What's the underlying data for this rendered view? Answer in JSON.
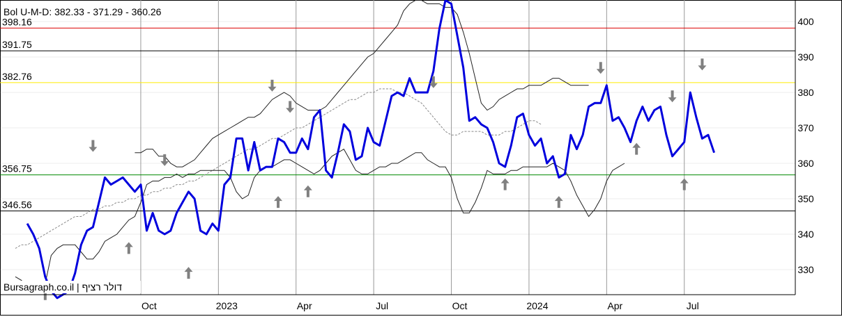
{
  "chart_data": {
    "type": "line",
    "title": "Bol U-M-D: 382.33 - 371.29 - 360.26",
    "watermark": "Bursagraph.co.il | דולר רציף",
    "ylim": [
      323,
      407
    ],
    "y_ticks": [
      330,
      340,
      350,
      360,
      370,
      380,
      390,
      400
    ],
    "x_ticks": [
      {
        "label": "Oct",
        "week": 21
      },
      {
        "label": "2023",
        "week": 34
      },
      {
        "label": "Apr",
        "week": 47
      },
      {
        "label": "Jul",
        "week": 60
      },
      {
        "label": "Oct",
        "week": 73
      },
      {
        "label": "2024",
        "week": 86
      },
      {
        "label": "Apr",
        "week": 99
      },
      {
        "label": "Jul",
        "week": 112
      }
    ],
    "x_range": [
      0,
      123
    ],
    "colors": {
      "price": "#0000dd",
      "band": "#222222",
      "middle": "#888888",
      "red_level": "#dd0000",
      "yellow_level": "#ffee00",
      "green_level": "#008800",
      "black_level": "#000000",
      "signal": "#808080",
      "grid": "#999999"
    },
    "levels": [
      {
        "label": "398.16",
        "value": 398.16,
        "color": "red"
      },
      {
        "label": "391.75",
        "value": 391.75,
        "color": "black"
      },
      {
        "label": "382.76",
        "value": 382.76,
        "color": "yellow"
      },
      {
        "label": "356.75",
        "value": 356.75,
        "color": "green"
      },
      {
        "label": "346.56",
        "value": 346.56,
        "color": "black"
      }
    ],
    "series": [
      {
        "role": "price",
        "x_start": 2,
        "values": [
          343,
          340,
          336,
          328,
          324,
          322,
          323,
          324,
          329,
          337,
          341,
          342,
          349,
          356,
          354,
          355,
          356,
          354,
          352,
          354,
          341,
          346,
          341,
          340,
          341,
          346,
          349,
          352,
          350,
          341,
          340,
          343,
          341,
          354,
          356,
          367,
          367,
          358,
          366,
          358,
          359,
          359,
          367,
          366,
          363,
          363,
          367,
          364,
          373,
          375,
          358,
          356,
          363,
          371,
          369,
          361,
          362,
          370,
          366,
          365,
          372,
          379,
          380,
          379,
          384,
          380,
          380,
          380,
          386,
          398,
          406,
          405,
          396,
          387,
          372,
          373,
          371,
          370,
          366,
          360,
          359,
          365,
          373,
          374,
          368,
          365,
          367,
          360,
          362,
          356,
          357,
          368,
          364,
          368,
          376,
          377,
          377,
          382,
          372,
          373,
          370,
          366,
          372,
          376,
          372,
          375,
          376,
          368,
          362,
          364,
          366,
          380,
          373,
          367,
          368,
          363
        ]
      },
      {
        "role": "upper-band",
        "x_start": 20,
        "values": [
          363,
          363,
          364,
          364,
          362,
          362,
          360,
          359,
          359,
          360,
          361,
          363,
          365,
          367,
          368,
          369,
          370,
          371,
          372,
          373,
          373,
          374,
          376,
          378,
          379,
          380,
          379,
          377,
          376,
          375,
          375,
          375,
          376,
          378,
          380,
          382,
          384,
          386,
          388,
          390,
          391,
          393,
          395,
          397,
          399,
          403,
          405,
          406,
          406,
          405,
          405,
          405,
          404,
          404,
          402,
          397,
          391,
          384,
          377,
          375,
          376,
          378,
          379,
          380,
          381,
          381,
          382,
          382,
          382,
          383,
          384,
          384,
          383,
          382,
          382,
          382,
          382
        ]
      },
      {
        "role": "middle-band",
        "x_start": 0,
        "values": [
          336,
          337,
          337,
          338,
          339,
          340,
          341,
          342,
          343,
          344,
          345,
          345,
          346,
          347,
          347,
          348,
          348,
          349,
          349,
          350,
          350,
          351,
          351,
          352,
          352,
          353,
          353,
          354,
          354,
          355,
          355,
          356,
          357,
          358,
          359,
          360,
          361,
          362,
          363,
          364,
          364,
          365,
          366,
          367,
          367,
          368,
          369,
          370,
          370,
          371,
          372,
          373,
          374,
          375,
          376,
          377,
          378,
          378,
          379,
          380,
          380,
          381,
          381,
          381,
          380,
          380,
          379,
          378,
          377,
          375,
          373,
          371,
          369,
          368,
          368,
          369,
          369,
          369,
          369,
          368,
          368,
          368,
          369,
          369,
          370,
          371,
          372,
          372,
          371
        ]
      },
      {
        "role": "lower-band",
        "x_start": 0,
        "values": [
          328,
          327,
          325,
          324,
          325,
          326,
          334,
          336,
          337,
          337,
          337,
          335,
          333,
          333,
          335,
          338,
          339,
          340,
          342,
          344,
          345,
          349,
          354,
          355,
          355,
          356,
          356,
          357,
          356,
          357,
          357,
          358,
          358,
          358,
          358,
          358,
          356,
          352,
          350,
          351,
          356,
          358,
          359,
          359,
          360,
          361,
          361,
          360,
          359,
          358,
          357,
          358,
          360,
          362,
          363,
          364,
          361,
          358,
          357,
          357,
          358,
          359,
          359,
          360,
          360,
          361,
          362,
          363,
          363,
          361,
          360,
          359,
          359,
          356,
          350,
          346,
          346,
          349,
          353,
          358,
          357,
          357,
          357,
          358,
          358,
          359,
          359,
          359,
          359,
          359,
          360,
          359,
          358,
          355,
          351,
          348,
          345,
          347,
          350,
          355,
          358,
          359,
          360
        ]
      }
    ],
    "signals": [
      {
        "week": 5,
        "direction": "up",
        "value": 323
      },
      {
        "week": 13,
        "direction": "down",
        "value": 365
      },
      {
        "week": 19,
        "direction": "up",
        "value": 336
      },
      {
        "week": 25,
        "direction": "down",
        "value": 361
      },
      {
        "week": 29,
        "direction": "up",
        "value": 329
      },
      {
        "week": 43,
        "direction": "down",
        "value": 382
      },
      {
        "week": 44,
        "direction": "up",
        "value": 349
      },
      {
        "week": 46,
        "direction": "down",
        "value": 376
      },
      {
        "week": 49,
        "direction": "up",
        "value": 352
      },
      {
        "week": 70,
        "direction": "down",
        "value": 383
      },
      {
        "week": 82,
        "direction": "up",
        "value": 354
      },
      {
        "week": 91,
        "direction": "up",
        "value": 349
      },
      {
        "week": 98,
        "direction": "down",
        "value": 387
      },
      {
        "week": 104,
        "direction": "up",
        "value": 364
      },
      {
        "week": 110,
        "direction": "down",
        "value": 379
      },
      {
        "week": 112,
        "direction": "up",
        "value": 354
      },
      {
        "week": 115,
        "direction": "down",
        "value": 388
      }
    ]
  }
}
